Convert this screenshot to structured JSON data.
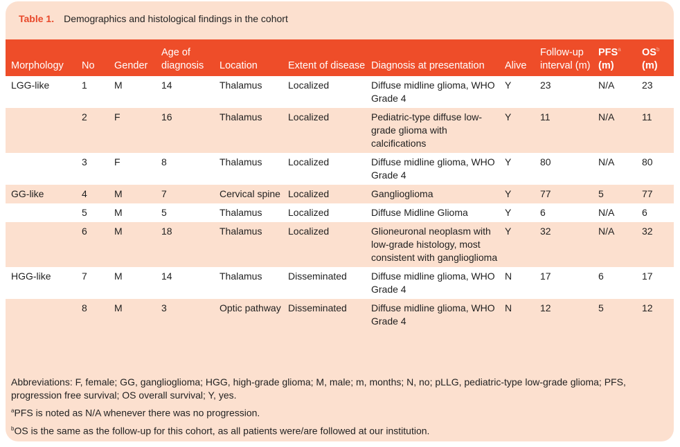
{
  "caption": {
    "label": "Table 1.",
    "title": "Demographics and histological findings in the cohort"
  },
  "headers": {
    "morphology": "Morphology",
    "no": "No",
    "gender": "Gender",
    "age": "Age of diagnosis",
    "location": "Location",
    "extent": "Extent of disease",
    "diagnosis": "Diagnosis at presentation",
    "alive": "Alive",
    "followup": "Follow-up interval (m)",
    "pfs": "PFS",
    "pfs_unit": "(m)",
    "pfs_mark": "a",
    "os": "OS",
    "os_unit": "(m)",
    "os_mark": "b"
  },
  "rows": [
    {
      "morphology": "LGG-like",
      "no": "1",
      "gender": "M",
      "age": "14",
      "location": "Thalamus",
      "extent": "Localized",
      "diagnosis": "Diffuse midline glioma, WHO Grade 4",
      "alive": "Y",
      "followup": "23",
      "pfs": "N/A",
      "os": "23"
    },
    {
      "morphology": "",
      "no": "2",
      "gender": "F",
      "age": "16",
      "location": "Thalamus",
      "extent": "Localized",
      "diagnosis": "Pediatric-type diffuse low-grade glioma with calcifications",
      "alive": "Y",
      "followup": "11",
      "pfs": "N/A",
      "os": "11"
    },
    {
      "morphology": "",
      "no": "3",
      "gender": "F",
      "age": "8",
      "location": "Thalamus",
      "extent": "Localized",
      "diagnosis": "Diffuse midline glioma, WHO Grade 4",
      "alive": "Y",
      "followup": "80",
      "pfs": "N/A",
      "os": "80"
    },
    {
      "morphology": "GG-like",
      "no": "4",
      "gender": "M",
      "age": "7",
      "location": "Cervical spine",
      "extent": "Localized",
      "diagnosis": "Ganglioglioma",
      "alive": "Y",
      "followup": "77",
      "pfs": "5",
      "os": "77"
    },
    {
      "morphology": "",
      "no": "5",
      "gender": "M",
      "age": "5",
      "location": "Thalamus",
      "extent": "Localized",
      "diagnosis": "Diffuse Midline Glioma",
      "alive": "Y",
      "followup": "6",
      "pfs": "N/A",
      "os": "6"
    },
    {
      "morphology": "",
      "no": "6",
      "gender": "M",
      "age": "18",
      "location": "Thalamus",
      "extent": "Localized",
      "diagnosis": "Glioneuronal neoplasm with low-grade histology, most consistent with ganglioglioma",
      "alive": "Y",
      "followup": "32",
      "pfs": "N/A",
      "os": "32"
    },
    {
      "morphology": "HGG-like",
      "no": "7",
      "gender": "M",
      "age": "14",
      "location": "Thalamus",
      "extent": "Disseminated",
      "diagnosis": "Diffuse midline glioma, WHO Grade 4",
      "alive": "N",
      "followup": "17",
      "pfs": "6",
      "os": "17"
    },
    {
      "morphology": "",
      "no": "8",
      "gender": "M",
      "age": "3",
      "location": "Optic pathway",
      "extent": "Disseminated",
      "diagnosis": "Diffuse midline glioma, WHO Grade 4",
      "alive": "N",
      "followup": "12",
      "pfs": "5",
      "os": "12"
    }
  ],
  "footnotes": {
    "abbreviations": "Abbreviations: F, female; GG, ganglioglioma; HGG, high-grade glioma; M, male; m, months; N, no; pLLG, pediatric-type low-grade glioma; PFS, progression free survival; OS overall survival; Y, yes.",
    "a_mark": "a",
    "a_text": "PFS is noted as N/A whenever there was no progression.",
    "b_mark": "b",
    "b_text": "OS is the same as the follow-up for this cohort, as all patients were/are followed at our institution."
  },
  "colors": {
    "accent": "#ee4d29",
    "panel": "#fce0cf",
    "caption_label": "#e8482a"
  }
}
